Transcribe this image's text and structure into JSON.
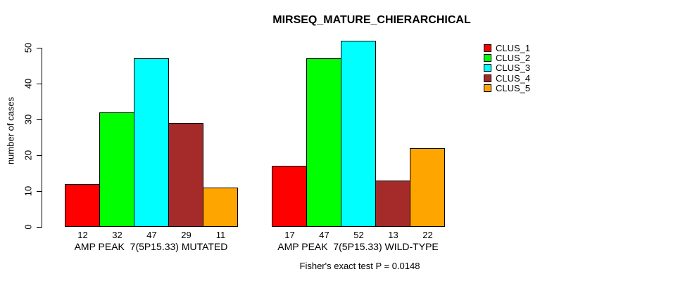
{
  "figure": {
    "background": "#FFFFFF",
    "text_color": "#000000"
  },
  "chart_data": {
    "type": "bar",
    "title": "MIRSEQ_MATURE_CHIERARCHICAL",
    "ylabel": "number of cases",
    "xlabel": "",
    "yticks": [
      0,
      10,
      20,
      30,
      40,
      50
    ],
    "ylim": [
      0,
      52
    ],
    "grid": false,
    "legend_position": "top-right",
    "series": [
      {
        "name": "CLUS_1",
        "color": "#FF0000"
      },
      {
        "name": "CLUS_2",
        "color": "#00FF00"
      },
      {
        "name": "CLUS_3",
        "color": "#00FFFF"
      },
      {
        "name": "CLUS_4",
        "color": "#A52A2A"
      },
      {
        "name": "CLUS_5",
        "color": "#FFA500"
      }
    ],
    "groups": [
      {
        "label": "AMP PEAK  7(5P15.33) MUTATED",
        "values": [
          12,
          32,
          47,
          29,
          11
        ]
      },
      {
        "label": "AMP PEAK  7(5P15.33) WILD-TYPE",
        "values": [
          17,
          47,
          52,
          13,
          22
        ]
      }
    ],
    "bar_value_labels": true,
    "annotation": "Fisher's exact test P = 0.0148"
  }
}
